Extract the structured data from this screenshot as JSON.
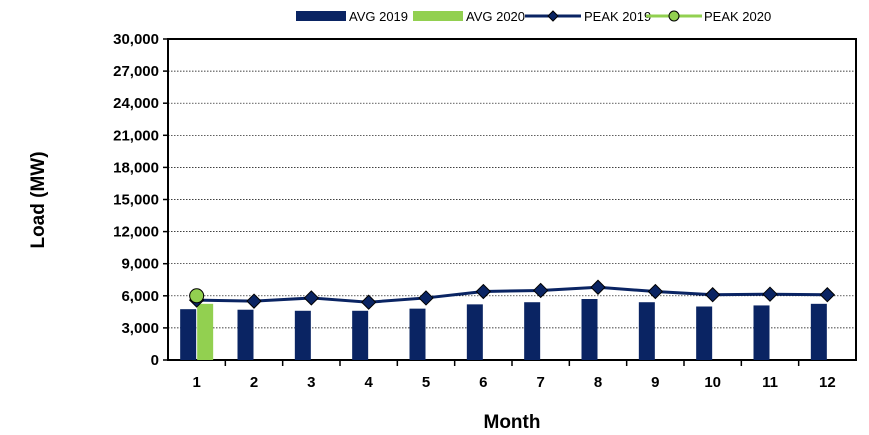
{
  "chart_data": {
    "type": "bar",
    "categories": [
      "1",
      "2",
      "3",
      "4",
      "5",
      "6",
      "7",
      "8",
      "9",
      "10",
      "11",
      "12"
    ],
    "series": [
      {
        "name": "AVG 2019",
        "type": "bar",
        "color": "#0a2463",
        "values": [
          4750,
          4700,
          4600,
          4600,
          4800,
          5200,
          5400,
          5700,
          5400,
          5000,
          5100,
          5250
        ]
      },
      {
        "name": "AVG 2020",
        "type": "bar",
        "color": "#92d050",
        "values": [
          5250,
          null,
          null,
          null,
          null,
          null,
          null,
          null,
          null,
          null,
          null,
          null
        ]
      },
      {
        "name": "PEAK 2019",
        "type": "line",
        "color": "#0a2463",
        "marker": "diamond",
        "values": [
          5600,
          5500,
          5800,
          5400,
          5800,
          6400,
          6500,
          6800,
          6400,
          6100,
          6150,
          6100
        ]
      },
      {
        "name": "PEAK 2020",
        "type": "line",
        "color": "#92d050",
        "marker": "circle",
        "values": [
          6000,
          null,
          null,
          null,
          null,
          null,
          null,
          null,
          null,
          null,
          null,
          null
        ]
      }
    ],
    "xlabel": "Month",
    "ylabel": "Load (MW)",
    "ylim": [
      0,
      30000
    ],
    "yticks": [
      "0",
      "3,000",
      "6,000",
      "9,000",
      "12,000",
      "15,000",
      "18,000",
      "21,000",
      "24,000",
      "27,000",
      "30,000"
    ],
    "grid": true,
    "legend": "top"
  }
}
